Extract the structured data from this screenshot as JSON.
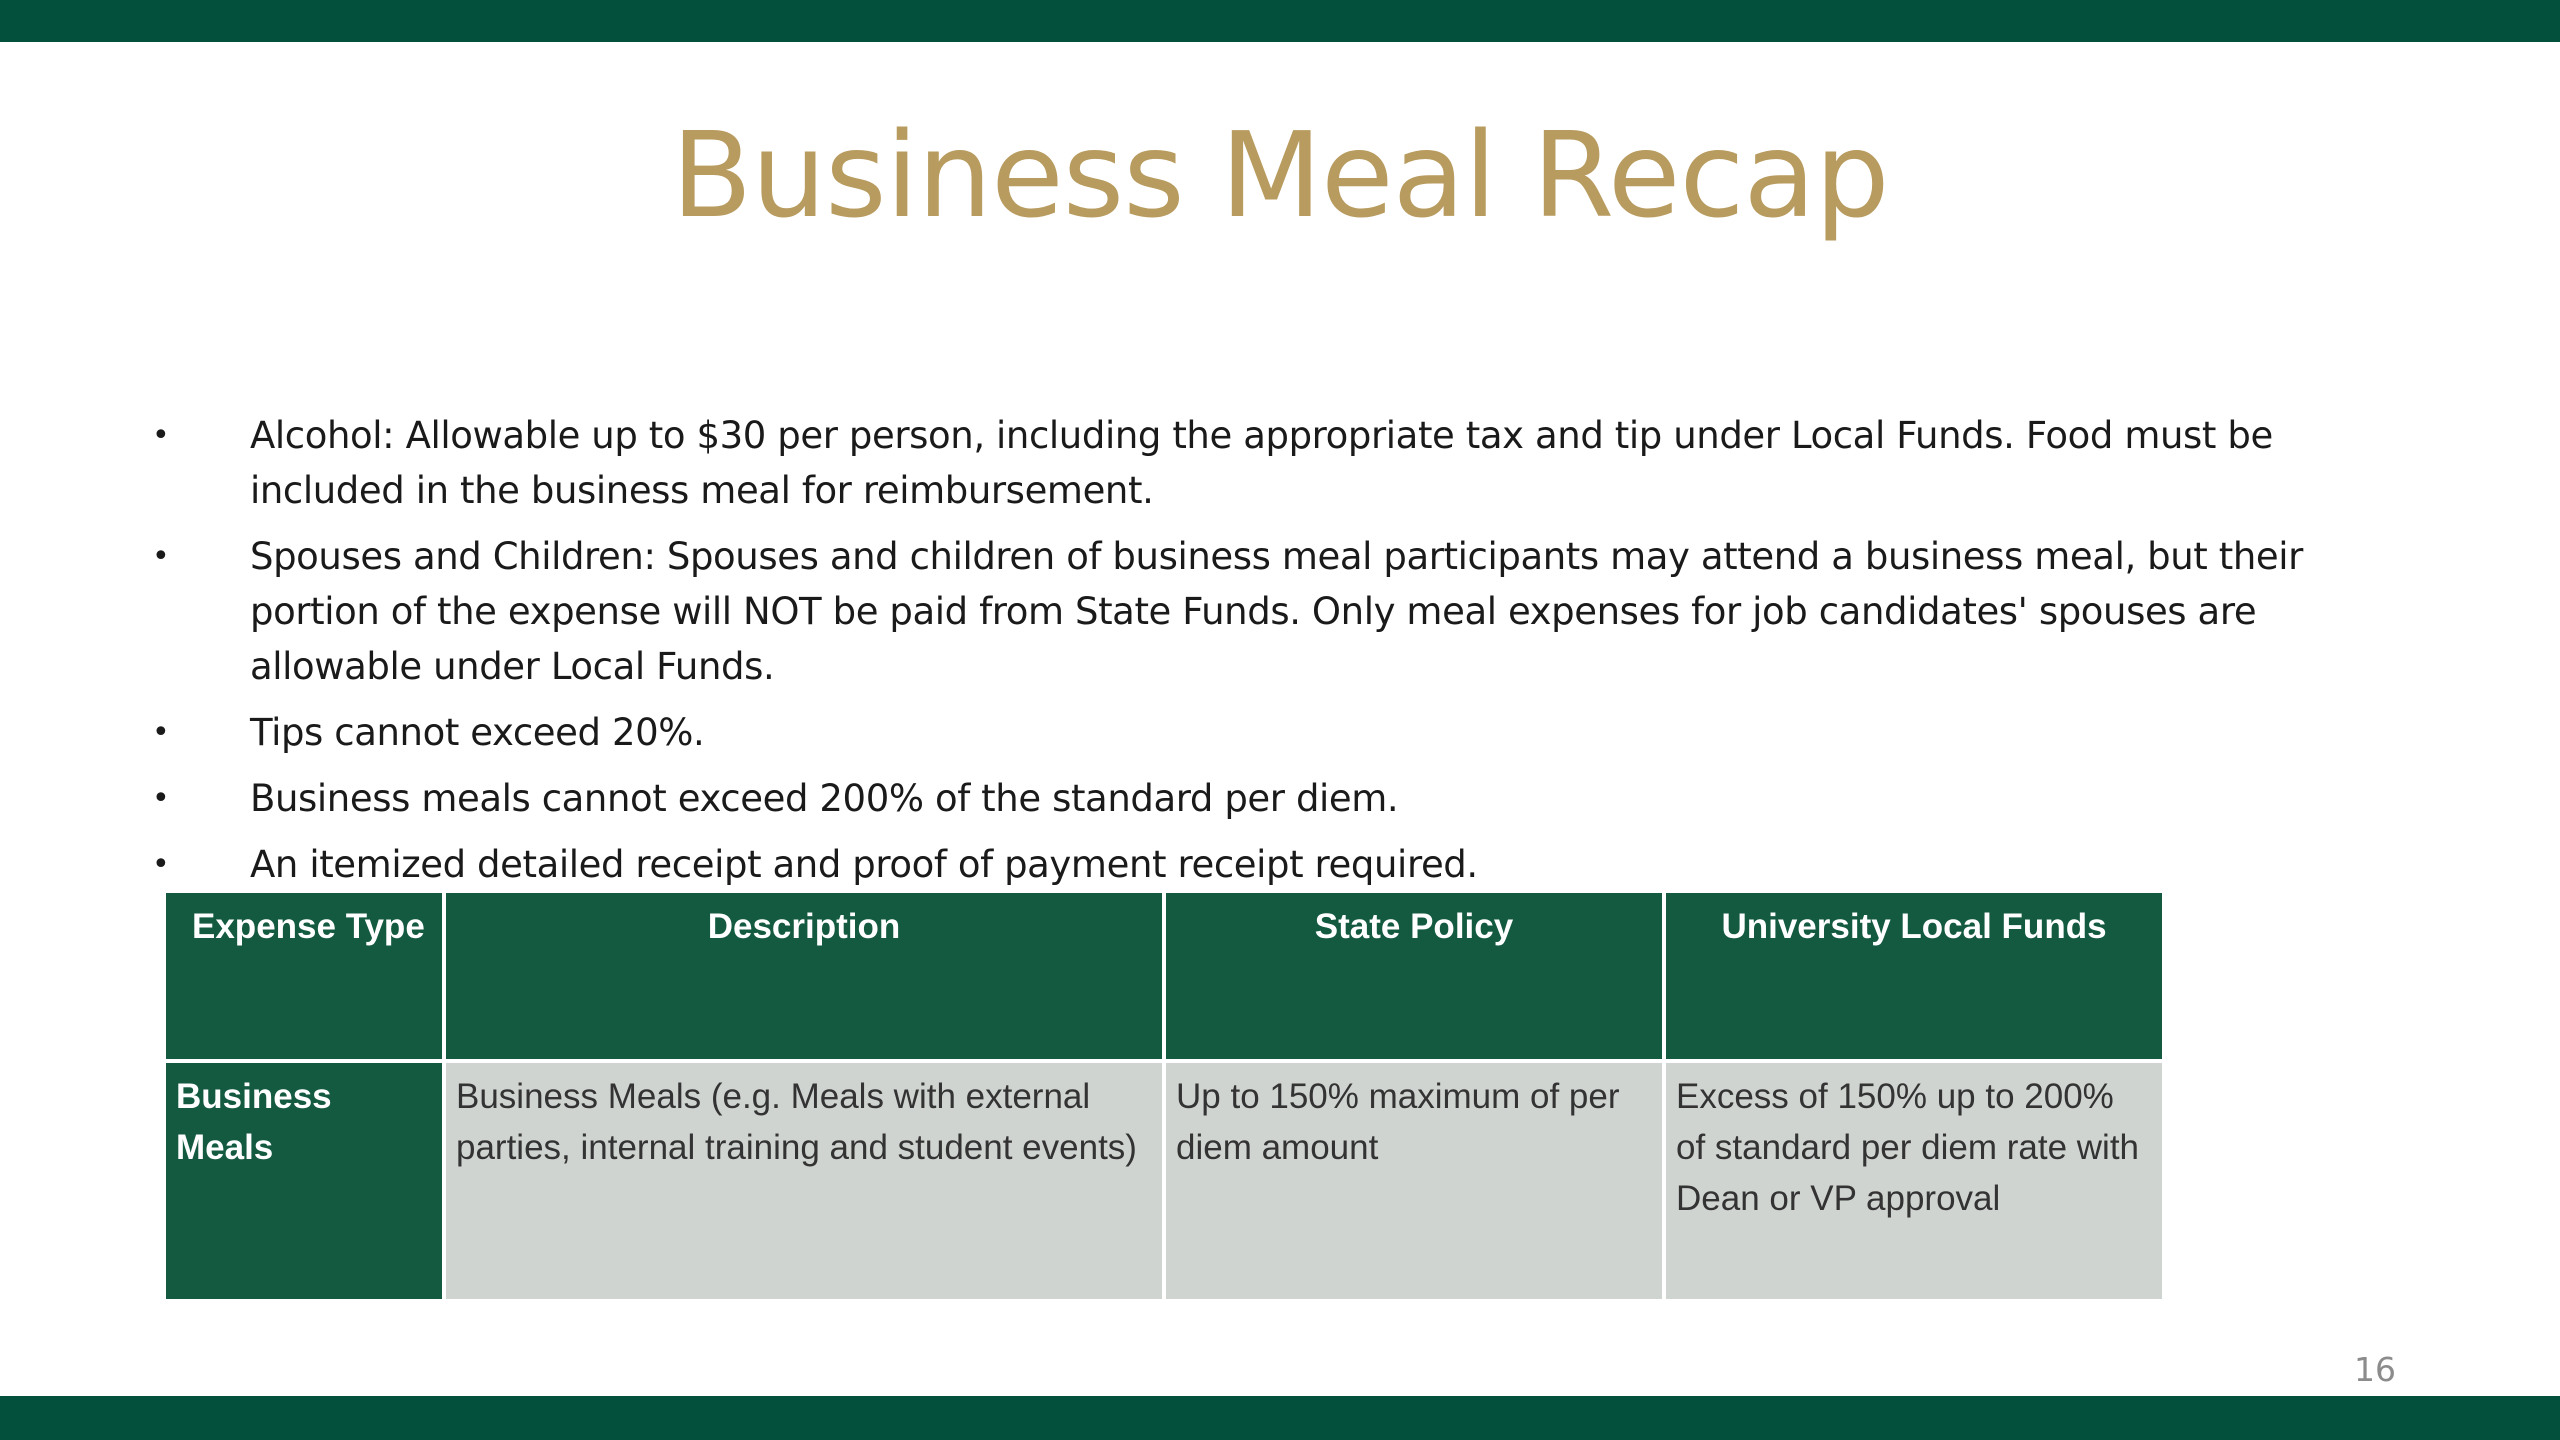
{
  "slide": {
    "title": "Business Meal Recap",
    "page_number": "16",
    "colors": {
      "brand_green": "#03503c",
      "table_header_green": "#145a41",
      "title_gold": "#b89b5e",
      "table_cell_gray": "#d0d4d1"
    }
  },
  "bullets": [
    "Alcohol: Allowable up to $30 per person, including the appropriate tax and tip under Local Funds. Food must be included in the business meal for reimbursement.",
    "Spouses and Children: Spouses and children of business meal participants may attend a business meal, but their portion of the expense will NOT be paid from State Funds. Only meal expenses for job candidates' spouses are allowable under Local Funds.",
    "Tips cannot exceed 20%.",
    "Business meals cannot exceed 200% of the standard per diem.",
    "An itemized detailed receipt and proof of payment receipt required."
  ],
  "bullet_marker": "•",
  "table": {
    "headers": [
      "Expense Type",
      "Description",
      "State Policy",
      "University Local Funds"
    ],
    "rows": [
      [
        "Business Meals",
        "Business Meals (e.g. Meals with external parties, internal training and student events)",
        "Up to 150% maximum of per diem amount",
        "Excess of 150% up to 200% of standard per diem rate with Dean or VP approval"
      ]
    ]
  }
}
